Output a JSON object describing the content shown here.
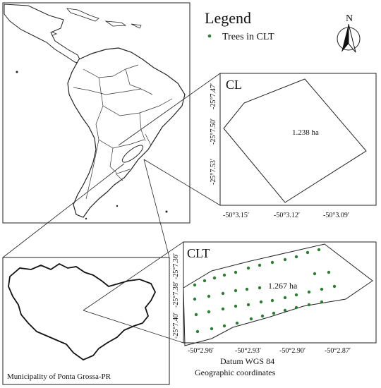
{
  "legend": {
    "title": "Legend",
    "item_label": "Trees in CLT",
    "item_color": "#2e7d32",
    "north_label": "N"
  },
  "panel_cl": {
    "title": "CL",
    "area_label": "1.238 ha",
    "y_ticks": [
      "-25°7.47′",
      "-25°7.50′",
      "-25°7.53′"
    ],
    "x_ticks": [
      "-50°3.15′",
      "-50°3.12′",
      "-50°3.09′"
    ]
  },
  "panel_clt": {
    "title": "CLT",
    "area_label": "1.267 ha",
    "y_ticks": [
      "-25°7.36′",
      "-25°7.38′",
      "-25°7.40′"
    ],
    "x_ticks": [
      "-50°2.96′",
      "-50°2.93′",
      "-50°2.90′",
      "-50°2.87′"
    ]
  },
  "footer": {
    "datum": "Datum WGS 84",
    "coords": "Geographic coordinates"
  },
  "municipality": {
    "label": "Municipality of Ponta Grossa-PR"
  },
  "icons": [
    "north-arrow-icon",
    "tree-point-icon"
  ]
}
